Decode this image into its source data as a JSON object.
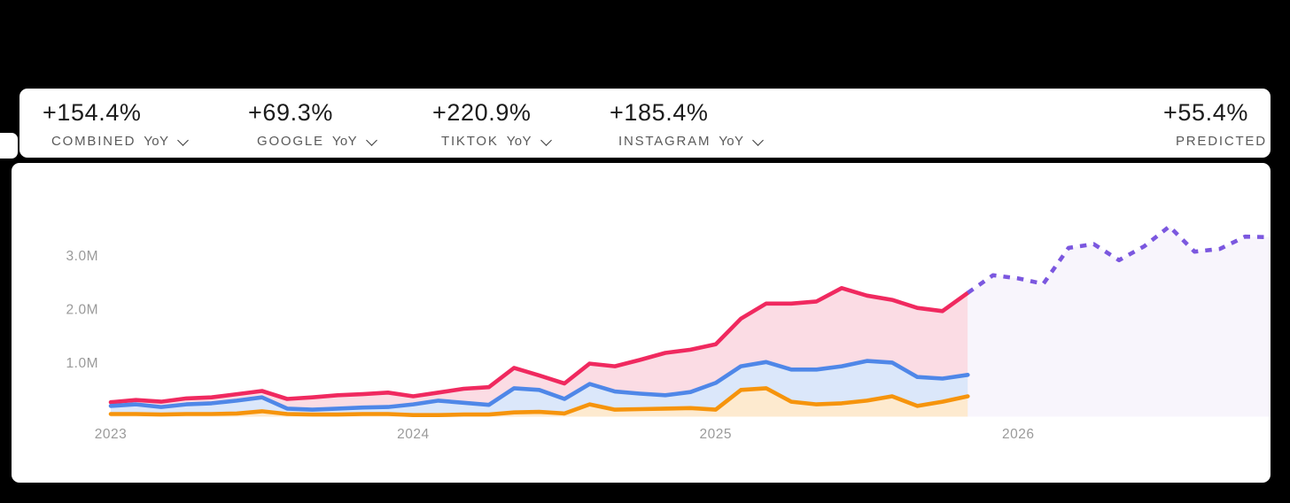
{
  "accent_colors": {
    "red": "#F0295F",
    "blue": "#4F87E8",
    "orange": "#F6940C",
    "purple": "#7B57DF",
    "red_fill": "#FBDCE4",
    "blue_fill": "#DBE7FA",
    "orange_fill": "#FDEACF",
    "purple_fill": "#F8F5FC",
    "axis_text": "#9A9A9A",
    "card_bg": "#FFFFFF",
    "page_bg": "#000000"
  },
  "stats": [
    {
      "value": "+154.4%",
      "name": "COMBINED",
      "suffix": "YoY"
    },
    {
      "value": "+69.3%",
      "name": "GOOGLE",
      "suffix": "YoY"
    },
    {
      "value": "+220.9%",
      "name": "TIKTOK",
      "suffix": "YoY"
    },
    {
      "value": "+185.4%",
      "name": "INSTAGRAM",
      "suffix": "YoY"
    },
    {
      "value": "+55.4%",
      "name": "PREDICTED",
      "suffix": ""
    }
  ],
  "chart_data": {
    "type": "area",
    "title": "",
    "xlabel": "",
    "ylabel": "",
    "x_unit": "month",
    "x_start": "2023-01",
    "grid": false,
    "legend": "none",
    "ylim_millions": [
      0,
      3.9
    ],
    "y_ticks": [
      {
        "label": "1.0M",
        "value": 1.0
      },
      {
        "label": "2.0M",
        "value": 2.0
      },
      {
        "label": "3.0M",
        "value": 3.0
      }
    ],
    "x_ticks": [
      {
        "label": "2023",
        "month_index": 0
      },
      {
        "label": "2024",
        "month_index": 12
      },
      {
        "label": "2025",
        "month_index": 24
      },
      {
        "label": "2026",
        "month_index": 36
      }
    ],
    "series": [
      {
        "key": "red",
        "color": "#F0295F",
        "fill": "#FBDCE4",
        "line_style": "solid",
        "start_month_index": 0,
        "values_millions": [
          0.27,
          0.31,
          0.28,
          0.34,
          0.36,
          0.42,
          0.48,
          0.33,
          0.36,
          0.4,
          0.42,
          0.45,
          0.38,
          0.45,
          0.52,
          0.55,
          0.91,
          0.77,
          0.62,
          0.99,
          0.94,
          1.06,
          1.19,
          1.25,
          1.35,
          1.83,
          2.11,
          2.11,
          2.15,
          2.4,
          2.26,
          2.18,
          2.03,
          1.97,
          2.31
        ]
      },
      {
        "key": "blue",
        "color": "#4F87E8",
        "fill": "#DBE7FA",
        "line_style": "solid",
        "start_month_index": 0,
        "values_millions": [
          0.2,
          0.23,
          0.18,
          0.23,
          0.25,
          0.3,
          0.36,
          0.15,
          0.13,
          0.15,
          0.17,
          0.18,
          0.23,
          0.3,
          0.26,
          0.22,
          0.53,
          0.5,
          0.33,
          0.61,
          0.47,
          0.43,
          0.4,
          0.46,
          0.63,
          0.94,
          1.02,
          0.88,
          0.88,
          0.94,
          1.04,
          1.01,
          0.74,
          0.71,
          0.78
        ]
      },
      {
        "key": "orange",
        "color": "#F6940C",
        "fill": "#FDEACF",
        "line_style": "solid",
        "start_month_index": 0,
        "values_millions": [
          0.05,
          0.05,
          0.04,
          0.05,
          0.05,
          0.06,
          0.1,
          0.05,
          0.04,
          0.04,
          0.05,
          0.05,
          0.03,
          0.03,
          0.04,
          0.04,
          0.08,
          0.09,
          0.06,
          0.23,
          0.13,
          0.14,
          0.15,
          0.16,
          0.13,
          0.5,
          0.53,
          0.28,
          0.23,
          0.25,
          0.3,
          0.38,
          0.2,
          0.28,
          0.38
        ]
      },
      {
        "key": "predicted",
        "color": "#7B57DF",
        "fill": "#F8F5FC",
        "line_style": "dashed",
        "start_month_index": 34,
        "values_millions": [
          2.31,
          2.64,
          2.58,
          2.48,
          3.15,
          3.22,
          2.92,
          3.18,
          3.55,
          3.08,
          3.13,
          3.36,
          3.35
        ]
      }
    ]
  }
}
